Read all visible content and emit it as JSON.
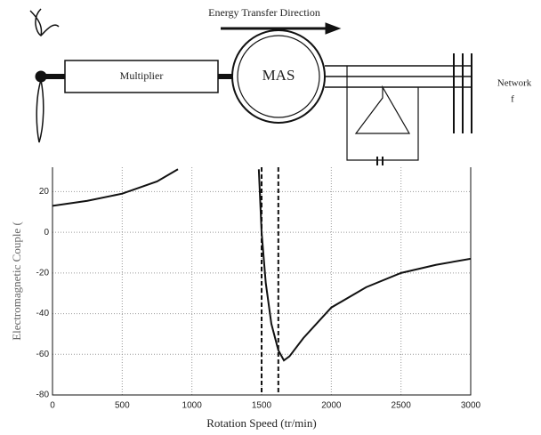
{
  "diagram": {
    "arrow_label": "Energy Transfer Direction",
    "gearbox": "Multiplier",
    "machine": "MAS",
    "network": "Network",
    "frequency": "f"
  },
  "chart_data": {
    "type": "line",
    "x_label": "Rotation Speed (tr/min)",
    "y_label": "Electromagnetic Couple (",
    "x": [
      0,
      250,
      500,
      750,
      900,
      1200,
      1480,
      1500,
      1530,
      1570,
      1620,
      1660,
      1700,
      1800,
      2000,
      2250,
      2500,
      2750,
      3000
    ],
    "series": [
      {
        "color": "#111111",
        "values": [
          13,
          15.5,
          19,
          25,
          31,
          null,
          31,
          0,
          -25,
          -45,
          -58,
          -63,
          -61,
          -52,
          -37,
          -27,
          -20,
          -16,
          -13
        ]
      }
    ],
    "vlines": [
      1500,
      1620
    ],
    "xlim": [
      0,
      3000
    ],
    "xticks": [
      0,
      500,
      1000,
      1500,
      2000,
      2500,
      3000
    ],
    "ylim": [
      -80,
      32
    ],
    "yticks": [
      -80,
      -60,
      -40,
      -20,
      0,
      20
    ],
    "grid": true
  }
}
